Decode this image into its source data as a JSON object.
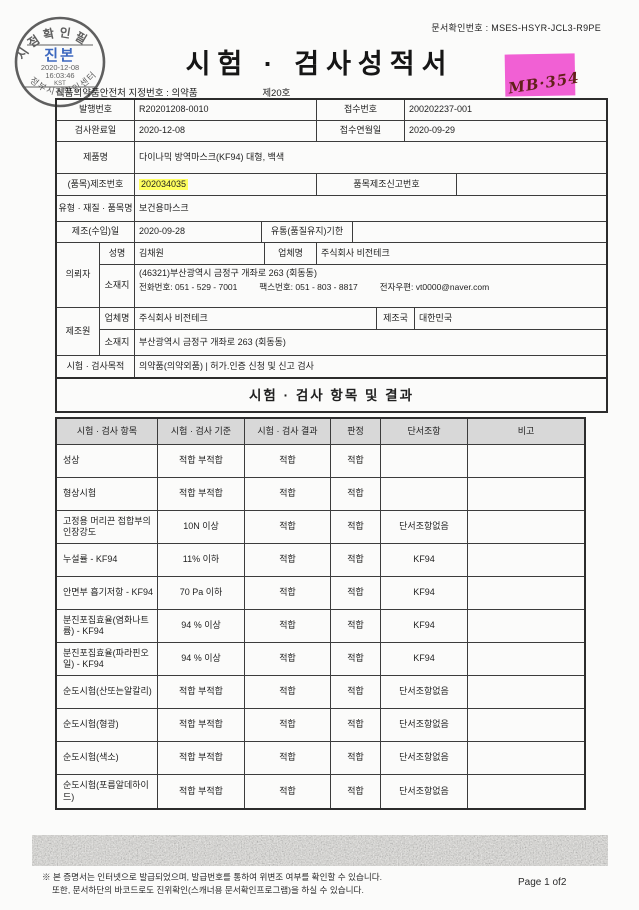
{
  "page": {
    "doc_check_no": "문서확인번호 : MSES-HSYR-JCL3-R9PE",
    "title": "시험 · 검사성적서",
    "designation_line": "식품의약품안전처 지정번호 : 의약품",
    "designation_no": "제20호",
    "note_text": "MB·354"
  },
  "stamp": {
    "arc_top": "시점확인필",
    "center_main": "진본",
    "date": "2020-12-08",
    "time": "16:03:46",
    "tz": "KST",
    "arc_bottom": "정부시점확인센터"
  },
  "info": {
    "issue_label": "발행번호",
    "issue_value": "R20201208-0010",
    "receipt_label": "접수번호",
    "receipt_value": "200202237-001",
    "complete_label": "검사완료일",
    "complete_value": "2020-12-08",
    "receipt_date_label": "접수연월일",
    "receipt_date_value": "2020-09-29",
    "product_label": "제품명",
    "product_value": "다이나믹 방역마스크(KF94) 대형, 백색",
    "lot_label": "(품목)제조번호",
    "lot_value": "202034035",
    "item_report_label": "품목제조신고번호",
    "item_report_value": "",
    "type_label": "유형 · 재질 · 품목명",
    "type_value": "보건용마스크",
    "mfg_date_label": "제조(수입)일",
    "mfg_date_value": "2020-09-28",
    "expiry_label": "유통(품질유지)기한",
    "expiry_value": "",
    "client_label": "의뢰자",
    "client_name_label": "성명",
    "client_name": "김채원",
    "client_company_label": "업체명",
    "client_company": "주식회사 비전테크",
    "client_addr_label": "소재지",
    "client_addr": "(46321)부산광역시 금정구 개좌로 263 (회동동)",
    "client_tel": "전화번호:  051 - 529 - 7001",
    "client_fax": "팩스번호: 051 - 803 - 8817",
    "client_email": "전자우편:  vt0000@naver.com",
    "maker_label": "제조원",
    "maker_company_label": "업체명",
    "maker_company": "주식회사 비전테크",
    "maker_country_label": "제조국",
    "maker_country": "대한민국",
    "maker_addr_label": "소재지",
    "maker_addr": "부산광역시 금정구 개좌로 263 (회동동)",
    "purpose_label": "시험 · 검사목적",
    "purpose_value": "의약품(의약외품) | 허가.인증 신청 및 신고 검사"
  },
  "section_title": "시험 · 검사 항목 및 결과",
  "results": {
    "headers": [
      "시험 · 검사 항목",
      "시험 · 검사 기준",
      "시험 · 검사 결과",
      "판정",
      "단서조항",
      "비고"
    ],
    "rows": [
      [
        "성상",
        "적합 부적합",
        "적합",
        "적합",
        "",
        ""
      ],
      [
        "형상시험",
        "적합 부적합",
        "적합",
        "적합",
        "",
        ""
      ],
      [
        "고정용 머리끈 접합부의 인장강도",
        "10N 이상",
        "적합",
        "적합",
        "단서조항없음",
        ""
      ],
      [
        "누설률 - KF94",
        "11% 이하",
        "적합",
        "적합",
        "KF94",
        ""
      ],
      [
        "안면부 흡기저항 - KF94",
        "70 Pa 이하",
        "적합",
        "적합",
        "KF94",
        ""
      ],
      [
        "분진포집효율(염화나트륨) - KF94",
        "94 % 이상",
        "적합",
        "적합",
        "KF94",
        ""
      ],
      [
        "분진포집효율(파라핀오일) - KF94",
        "94 % 이상",
        "적합",
        "적합",
        "KF94",
        ""
      ],
      [
        "순도시험(산또는알칼리)",
        "적합 부적합",
        "적합",
        "적합",
        "단서조항없음",
        ""
      ],
      [
        "순도시험(형광)",
        "적합 부적합",
        "적합",
        "적합",
        "단서조항없음",
        ""
      ],
      [
        "순도시험(색소)",
        "적합 부적합",
        "적합",
        "적합",
        "단서조항없음",
        ""
      ],
      [
        "순도시험(포름알데하이드)",
        "적합 부적합",
        "적합",
        "적합",
        "단서조항없음",
        ""
      ]
    ]
  },
  "footer": {
    "notice1": "※ 본 증명서는 인터넷으로 발급되었으며, 발급번호를 통하여 위변조 여부를 확인할 수 있습니다.",
    "notice2": "또한, 문서하단의 바코드로도 진위확인(스캐너용 문서확인프로그램)을 하실 수 있습니다.",
    "page": "Page 1 of2"
  },
  "colors": {
    "highlight_yellow": "#ffff5e",
    "note_pink": "#f160d4",
    "table_header_bg": "#d8d8d8",
    "stamp_blue": "#2456b8",
    "stamp_gray": "#4a4a4a"
  }
}
